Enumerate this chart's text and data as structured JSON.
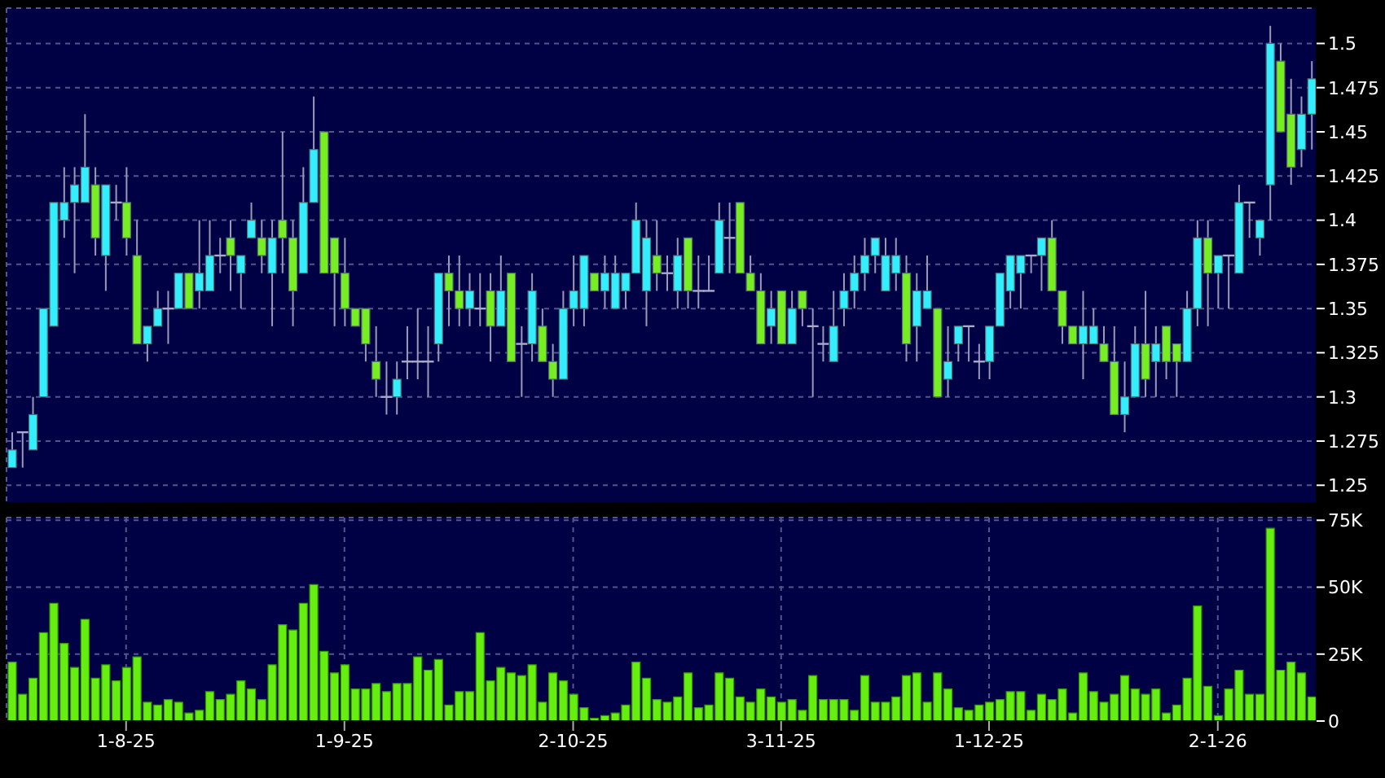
{
  "chart_data": [
    {
      "type": "candlestick",
      "categories": [
        null,
        null,
        null,
        null,
        null,
        null,
        null,
        null,
        null,
        null,
        null,
        null,
        null,
        null,
        null,
        null,
        null,
        null,
        null,
        null,
        null,
        null,
        null,
        null,
        null,
        null,
        null,
        null,
        null,
        null,
        null,
        null,
        null,
        null,
        null,
        null,
        null,
        null,
        null,
        null,
        null,
        null,
        null,
        null,
        null,
        null,
        null,
        null,
        null,
        null,
        null,
        null,
        null,
        null,
        null,
        null,
        null,
        null,
        null,
        null,
        null,
        null,
        null,
        null,
        null,
        null,
        null,
        null,
        null,
        null,
        null,
        null,
        null,
        null,
        null,
        null,
        null,
        null,
        null,
        null,
        null,
        null,
        null,
        null,
        null,
        null,
        null,
        null,
        null,
        null,
        null,
        null,
        null,
        null,
        null,
        null,
        null,
        null,
        null,
        null,
        null,
        null,
        null,
        null,
        null,
        null,
        null,
        null,
        null,
        null,
        null,
        null,
        null,
        null,
        null,
        null,
        null,
        null,
        null,
        null,
        null,
        null,
        null,
        null,
        null,
        null
      ],
      "ohlc": [
        [
          1.26,
          1.28,
          1.26,
          1.27
        ],
        [
          1.28,
          1.28,
          1.26,
          1.28
        ],
        [
          1.27,
          1.3,
          1.27,
          1.29
        ],
        [
          1.3,
          1.35,
          1.3,
          1.35
        ],
        [
          1.34,
          1.41,
          1.34,
          1.41
        ],
        [
          1.4,
          1.43,
          1.39,
          1.41
        ],
        [
          1.41,
          1.43,
          1.37,
          1.42
        ],
        [
          1.41,
          1.46,
          1.41,
          1.43
        ],
        [
          1.42,
          1.43,
          1.38,
          1.39
        ],
        [
          1.38,
          1.42,
          1.36,
          1.42
        ],
        [
          1.41,
          1.42,
          1.4,
          1.41
        ],
        [
          1.41,
          1.43,
          1.38,
          1.39
        ],
        [
          1.38,
          1.4,
          1.33,
          1.33
        ],
        [
          1.33,
          1.34,
          1.32,
          1.34
        ],
        [
          1.34,
          1.36,
          1.34,
          1.35
        ],
        [
          1.35,
          1.36,
          1.33,
          1.35
        ],
        [
          1.35,
          1.37,
          1.35,
          1.37
        ],
        [
          1.37,
          1.37,
          1.35,
          1.35
        ],
        [
          1.36,
          1.4,
          1.35,
          1.37
        ],
        [
          1.36,
          1.4,
          1.36,
          1.38
        ],
        [
          1.38,
          1.39,
          1.37,
          1.38
        ],
        [
          1.39,
          1.4,
          1.36,
          1.38
        ],
        [
          1.37,
          1.38,
          1.35,
          1.38
        ],
        [
          1.39,
          1.41,
          1.39,
          1.4
        ],
        [
          1.39,
          1.4,
          1.37,
          1.38
        ],
        [
          1.37,
          1.4,
          1.34,
          1.39
        ],
        [
          1.4,
          1.45,
          1.37,
          1.39
        ],
        [
          1.39,
          1.4,
          1.34,
          1.36
        ],
        [
          1.37,
          1.43,
          1.37,
          1.41
        ],
        [
          1.41,
          1.47,
          1.41,
          1.44
        ],
        [
          1.45,
          1.45,
          1.37,
          1.37
        ],
        [
          1.39,
          1.39,
          1.34,
          1.37
        ],
        [
          1.37,
          1.39,
          1.34,
          1.35
        ],
        [
          1.35,
          1.35,
          1.34,
          1.34
        ],
        [
          1.35,
          1.35,
          1.32,
          1.33
        ],
        [
          1.32,
          1.34,
          1.3,
          1.31
        ],
        [
          1.3,
          1.32,
          1.29,
          1.3
        ],
        [
          1.3,
          1.32,
          1.29,
          1.31
        ],
        [
          1.32,
          1.34,
          1.31,
          1.32
        ],
        [
          1.32,
          1.35,
          1.31,
          1.32
        ],
        [
          1.32,
          1.34,
          1.3,
          1.32
        ],
        [
          1.33,
          1.37,
          1.32,
          1.37
        ],
        [
          1.37,
          1.38,
          1.34,
          1.36
        ],
        [
          1.36,
          1.38,
          1.34,
          1.35
        ],
        [
          1.35,
          1.37,
          1.34,
          1.36
        ],
        [
          1.35,
          1.37,
          1.34,
          1.35
        ],
        [
          1.36,
          1.37,
          1.32,
          1.34
        ],
        [
          1.34,
          1.38,
          1.34,
          1.36
        ],
        [
          1.37,
          1.37,
          1.32,
          1.32
        ],
        [
          1.33,
          1.34,
          1.3,
          1.33
        ],
        [
          1.33,
          1.37,
          1.32,
          1.36
        ],
        [
          1.34,
          1.35,
          1.32,
          1.32
        ],
        [
          1.32,
          1.33,
          1.3,
          1.31
        ],
        [
          1.31,
          1.36,
          1.31,
          1.35
        ],
        [
          1.35,
          1.38,
          1.34,
          1.36
        ],
        [
          1.35,
          1.38,
          1.34,
          1.38
        ],
        [
          1.37,
          1.37,
          1.36,
          1.36
        ],
        [
          1.36,
          1.38,
          1.35,
          1.37
        ],
        [
          1.35,
          1.38,
          1.35,
          1.37
        ],
        [
          1.36,
          1.37,
          1.35,
          1.37
        ],
        [
          1.37,
          1.41,
          1.37,
          1.4
        ],
        [
          1.36,
          1.4,
          1.34,
          1.39
        ],
        [
          1.38,
          1.4,
          1.36,
          1.37
        ],
        [
          1.37,
          1.38,
          1.36,
          1.37
        ],
        [
          1.36,
          1.39,
          1.35,
          1.38
        ],
        [
          1.39,
          1.39,
          1.35,
          1.36
        ],
        [
          1.36,
          1.38,
          1.35,
          1.36
        ],
        [
          1.36,
          1.38,
          1.36,
          1.36
        ],
        [
          1.37,
          1.41,
          1.37,
          1.4
        ],
        [
          1.39,
          1.41,
          1.37,
          1.39
        ],
        [
          1.41,
          1.41,
          1.37,
          1.37
        ],
        [
          1.37,
          1.38,
          1.36,
          1.36
        ],
        [
          1.36,
          1.37,
          1.33,
          1.33
        ],
        [
          1.34,
          1.36,
          1.33,
          1.35
        ],
        [
          1.36,
          1.36,
          1.33,
          1.33
        ],
        [
          1.33,
          1.36,
          1.33,
          1.35
        ],
        [
          1.36,
          1.36,
          1.34,
          1.35
        ],
        [
          1.34,
          1.35,
          1.3,
          1.34
        ],
        [
          1.33,
          1.34,
          1.32,
          1.33
        ],
        [
          1.32,
          1.36,
          1.32,
          1.34
        ],
        [
          1.35,
          1.37,
          1.34,
          1.36
        ],
        [
          1.36,
          1.38,
          1.35,
          1.37
        ],
        [
          1.37,
          1.39,
          1.36,
          1.38
        ],
        [
          1.38,
          1.39,
          1.37,
          1.39
        ],
        [
          1.36,
          1.39,
          1.36,
          1.38
        ],
        [
          1.37,
          1.39,
          1.36,
          1.38
        ],
        [
          1.37,
          1.38,
          1.32,
          1.33
        ],
        [
          1.34,
          1.37,
          1.32,
          1.36
        ],
        [
          1.35,
          1.38,
          1.35,
          1.36
        ],
        [
          1.35,
          1.35,
          1.3,
          1.3
        ],
        [
          1.31,
          1.34,
          1.3,
          1.32
        ],
        [
          1.33,
          1.34,
          1.32,
          1.34
        ],
        [
          1.34,
          1.34,
          1.32,
          1.34
        ],
        [
          1.32,
          1.33,
          1.31,
          1.32
        ],
        [
          1.32,
          1.34,
          1.31,
          1.34
        ],
        [
          1.34,
          1.37,
          1.34,
          1.37
        ],
        [
          1.36,
          1.38,
          1.35,
          1.38
        ],
        [
          1.37,
          1.38,
          1.35,
          1.38
        ],
        [
          1.38,
          1.38,
          1.37,
          1.38
        ],
        [
          1.38,
          1.39,
          1.36,
          1.39
        ],
        [
          1.39,
          1.4,
          1.36,
          1.36
        ],
        [
          1.36,
          1.36,
          1.33,
          1.34
        ],
        [
          1.34,
          1.34,
          1.33,
          1.33
        ],
        [
          1.33,
          1.36,
          1.31,
          1.34
        ],
        [
          1.33,
          1.35,
          1.33,
          1.34
        ],
        [
          1.33,
          1.34,
          1.32,
          1.32
        ],
        [
          1.32,
          1.34,
          1.29,
          1.29
        ],
        [
          1.29,
          1.32,
          1.28,
          1.3
        ],
        [
          1.3,
          1.34,
          1.3,
          1.33
        ],
        [
          1.33,
          1.36,
          1.3,
          1.31
        ],
        [
          1.32,
          1.34,
          1.3,
          1.33
        ],
        [
          1.34,
          1.34,
          1.31,
          1.32
        ],
        [
          1.33,
          1.33,
          1.3,
          1.32
        ],
        [
          1.32,
          1.36,
          1.32,
          1.35
        ],
        [
          1.35,
          1.4,
          1.34,
          1.39
        ],
        [
          1.39,
          1.4,
          1.34,
          1.37
        ],
        [
          1.37,
          1.38,
          1.35,
          1.38
        ],
        [
          1.38,
          1.38,
          1.35,
          1.38
        ],
        [
          1.37,
          1.42,
          1.37,
          1.41
        ],
        [
          1.41,
          1.41,
          1.39,
          1.41
        ],
        [
          1.39,
          1.4,
          1.38,
          1.4
        ],
        [
          1.42,
          1.51,
          1.4,
          1.5
        ],
        [
          1.49,
          1.5,
          1.45,
          1.45
        ],
        [
          1.46,
          1.48,
          1.42,
          1.43
        ],
        [
          1.44,
          1.47,
          1.43,
          1.46
        ],
        [
          1.46,
          1.49,
          1.44,
          1.48
        ]
      ],
      "colors": [
        "#33eeff",
        "#aaaacc",
        "#33eeff",
        "#33eeff",
        "#33eeff",
        "#33eeff",
        "#33eeff",
        "#33eeff",
        "#77ee22",
        "#33eeff",
        "#aaaacc",
        "#77ee22",
        "#77ee22",
        "#33eeff",
        "#33eeff",
        "#aaaacc",
        "#33eeff",
        "#77ee22",
        "#33eeff",
        "#33eeff",
        "#aaaacc",
        "#77ee22",
        "#33eeff",
        "#33eeff",
        "#77ee22",
        "#33eeff",
        "#77ee22",
        "#77ee22",
        "#33eeff",
        "#33eeff",
        "#77ee22",
        "#77ee22",
        "#77ee22",
        "#77ee22",
        "#77ee22",
        "#77ee22",
        "#aaaacc",
        "#33eeff",
        "#aaaacc",
        "#aaaacc",
        "#aaaacc",
        "#33eeff",
        "#77ee22",
        "#77ee22",
        "#33eeff",
        "#aaaacc",
        "#77ee22",
        "#33eeff",
        "#77ee22",
        "#aaaacc",
        "#33eeff",
        "#77ee22",
        "#77ee22",
        "#33eeff",
        "#33eeff",
        "#33eeff",
        "#77ee22",
        "#33eeff",
        "#33eeff",
        "#33eeff",
        "#33eeff",
        "#33eeff",
        "#77ee22",
        "#aaaacc",
        "#33eeff",
        "#77ee22",
        "#aaaacc",
        "#aaaacc",
        "#33eeff",
        "#aaaacc",
        "#77ee22",
        "#77ee22",
        "#77ee22",
        "#33eeff",
        "#77ee22",
        "#33eeff",
        "#77ee22",
        "#aaaacc",
        "#aaaacc",
        "#33eeff",
        "#33eeff",
        "#33eeff",
        "#33eeff",
        "#33eeff",
        "#33eeff",
        "#33eeff",
        "#77ee22",
        "#33eeff",
        "#33eeff",
        "#77ee22",
        "#33eeff",
        "#33eeff",
        "#aaaacc",
        "#aaaacc",
        "#33eeff",
        "#33eeff",
        "#33eeff",
        "#33eeff",
        "#aaaacc",
        "#33eeff",
        "#77ee22",
        "#77ee22",
        "#77ee22",
        "#33eeff",
        "#33eeff",
        "#77ee22",
        "#77ee22",
        "#33eeff",
        "#33eeff",
        "#77ee22",
        "#33eeff",
        "#77ee22",
        "#77ee22",
        "#33eeff",
        "#33eeff",
        "#77ee22",
        "#33eeff",
        "#aaaacc",
        "#33eeff",
        "#aaaacc",
        "#33eeff",
        "#33eeff",
        "#77ee22",
        "#77ee22",
        "#33eeff",
        "#33eeff"
      ],
      "ylim": [
        1.24,
        1.52
      ],
      "yticks": [
        1.25,
        1.275,
        1.3,
        1.325,
        1.35,
        1.375,
        1.4,
        1.425,
        1.45,
        1.475,
        1.5
      ],
      "grid": true,
      "tick_labels": "y"
    },
    {
      "type": "bar",
      "categories": [
        null,
        null,
        null,
        null,
        null,
        null,
        null,
        null,
        null,
        null,
        null,
        "1-8-25",
        null,
        null,
        null,
        null,
        null,
        null,
        null,
        null,
        null,
        null,
        null,
        null,
        null,
        null,
        null,
        null,
        null,
        null,
        null,
        null,
        "1-9-25",
        null,
        null,
        null,
        null,
        null,
        null,
        null,
        null,
        null,
        null,
        null,
        null,
        null,
        null,
        null,
        null,
        null,
        null,
        null,
        null,
        null,
        "2-10-25",
        null,
        null,
        null,
        null,
        null,
        null,
        null,
        null,
        null,
        null,
        null,
        null,
        null,
        null,
        null,
        null,
        null,
        null,
        null,
        "3-11-25",
        null,
        null,
        null,
        null,
        null,
        null,
        null,
        null,
        null,
        null,
        null,
        null,
        null,
        null,
        null,
        null,
        null,
        null,
        null,
        "1-12-25",
        null,
        null,
        null,
        null,
        null,
        null,
        null,
        null,
        null,
        null,
        null,
        null,
        null,
        null,
        null,
        null,
        null,
        null,
        null,
        null,
        null,
        "2-1-26",
        null,
        null,
        null,
        null,
        null,
        null,
        null,
        null,
        null
      ],
      "values": [
        22,
        10,
        16,
        33,
        44,
        29,
        20,
        38,
        16,
        21,
        15,
        20,
        24,
        7,
        6,
        8,
        7,
        3,
        4,
        11,
        8,
        10,
        15,
        12,
        8,
        21,
        36,
        34,
        44,
        51,
        26,
        18,
        21,
        12,
        12,
        14,
        11,
        14,
        14,
        24,
        19,
        23,
        6,
        11,
        11,
        33,
        15,
        20,
        18,
        17,
        21,
        7,
        18,
        15,
        10,
        5,
        1,
        2,
        3,
        6,
        22,
        16,
        8,
        7,
        9,
        18,
        5,
        6,
        18,
        16,
        9,
        7,
        12,
        9,
        7,
        8,
        4,
        17,
        8,
        8,
        8,
        4,
        17,
        7,
        7,
        9,
        17,
        18,
        7,
        18,
        12,
        5,
        4,
        6,
        7,
        8,
        11,
        11,
        4,
        10,
        8,
        12,
        3,
        18,
        11,
        7,
        10,
        17,
        12,
        10,
        12,
        3,
        6,
        16,
        43,
        13,
        2,
        12,
        19,
        10,
        10,
        72,
        19,
        22,
        18,
        9
      ],
      "color": "#66ee11",
      "ylim": [
        0,
        76
      ],
      "yticks": [
        {
          "value": 0,
          "label": "0"
        },
        {
          "value": 25,
          "label": "25K"
        },
        {
          "value": 50,
          "label": "50K"
        },
        {
          "value": 75,
          "label": "75K"
        }
      ],
      "grid": true
    }
  ]
}
